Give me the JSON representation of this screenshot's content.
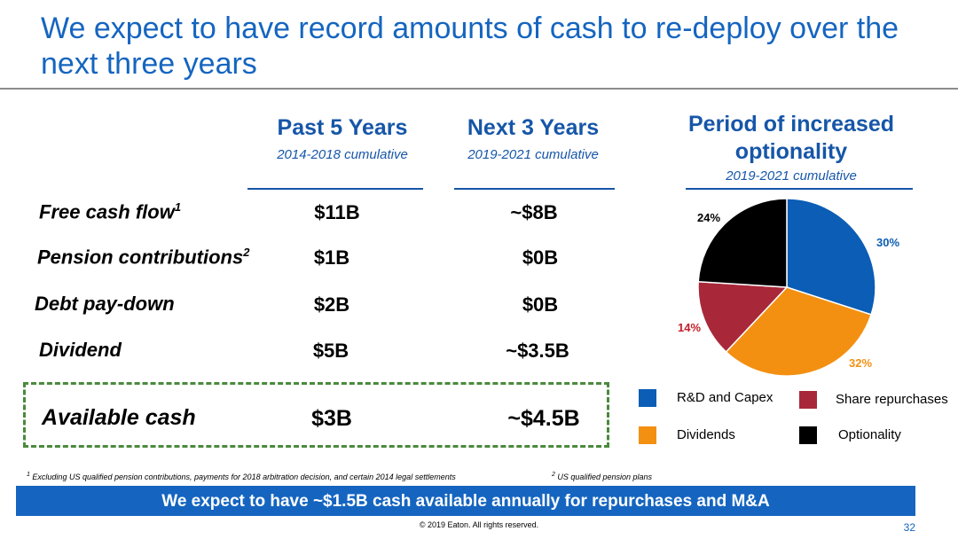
{
  "title": "We expect to have record amounts of cash to re-deploy over the next three years",
  "columns": {
    "past": {
      "heading": "Past 5 Years",
      "sub": "2014-2018 cumulative"
    },
    "next": {
      "heading": "Next 3 Years",
      "sub": "2019-2021 cumulative"
    },
    "optionality": {
      "heading": "Period of increased optionality",
      "sub": "2019-2021 cumulative"
    }
  },
  "rows": [
    {
      "label": "Free cash flow",
      "sup": "1",
      "past": "$11B",
      "next": "~$8B"
    },
    {
      "label": "Pension contributions",
      "sup": "2",
      "past": "$1B",
      "next": "$0B"
    },
    {
      "label": "Debt pay-down",
      "sup": "",
      "past": "$2B",
      "next": "$0B"
    },
    {
      "label": "Dividend",
      "sup": "",
      "past": "$5B",
      "next": "~$3.5B"
    }
  ],
  "available": {
    "label": "Available cash",
    "past": "$3B",
    "next": "~$4.5B"
  },
  "chart_data": {
    "type": "pie",
    "title": "Period of increased optionality",
    "subtitle": "2019-2021 cumulative",
    "slices": [
      {
        "name": "R&D and Capex",
        "value": 30,
        "label": "30%",
        "color": "#0b5db5"
      },
      {
        "name": "Dividends",
        "value": 32,
        "label": "32%",
        "color": "#f39012"
      },
      {
        "name": "Share repurchases",
        "value": 14,
        "label": "14%",
        "color": "#a8283a"
      },
      {
        "name": "Optionality",
        "value": 24,
        "label": "24%",
        "color": "#000000"
      }
    ],
    "legend_position": "bottom"
  },
  "footnotes": {
    "one_mark": "1",
    "one": "Excluding US qualified pension contributions, payments for 2018 arbitration decision, and certain 2014 legal settlements",
    "two_mark": "2",
    "two": "US qualified pension plans"
  },
  "banner": "We expect to have ~$1.5B cash available annually for repurchases and M&A",
  "copyright": "© 2019 Eaton. All rights reserved.",
  "page_number": "32"
}
